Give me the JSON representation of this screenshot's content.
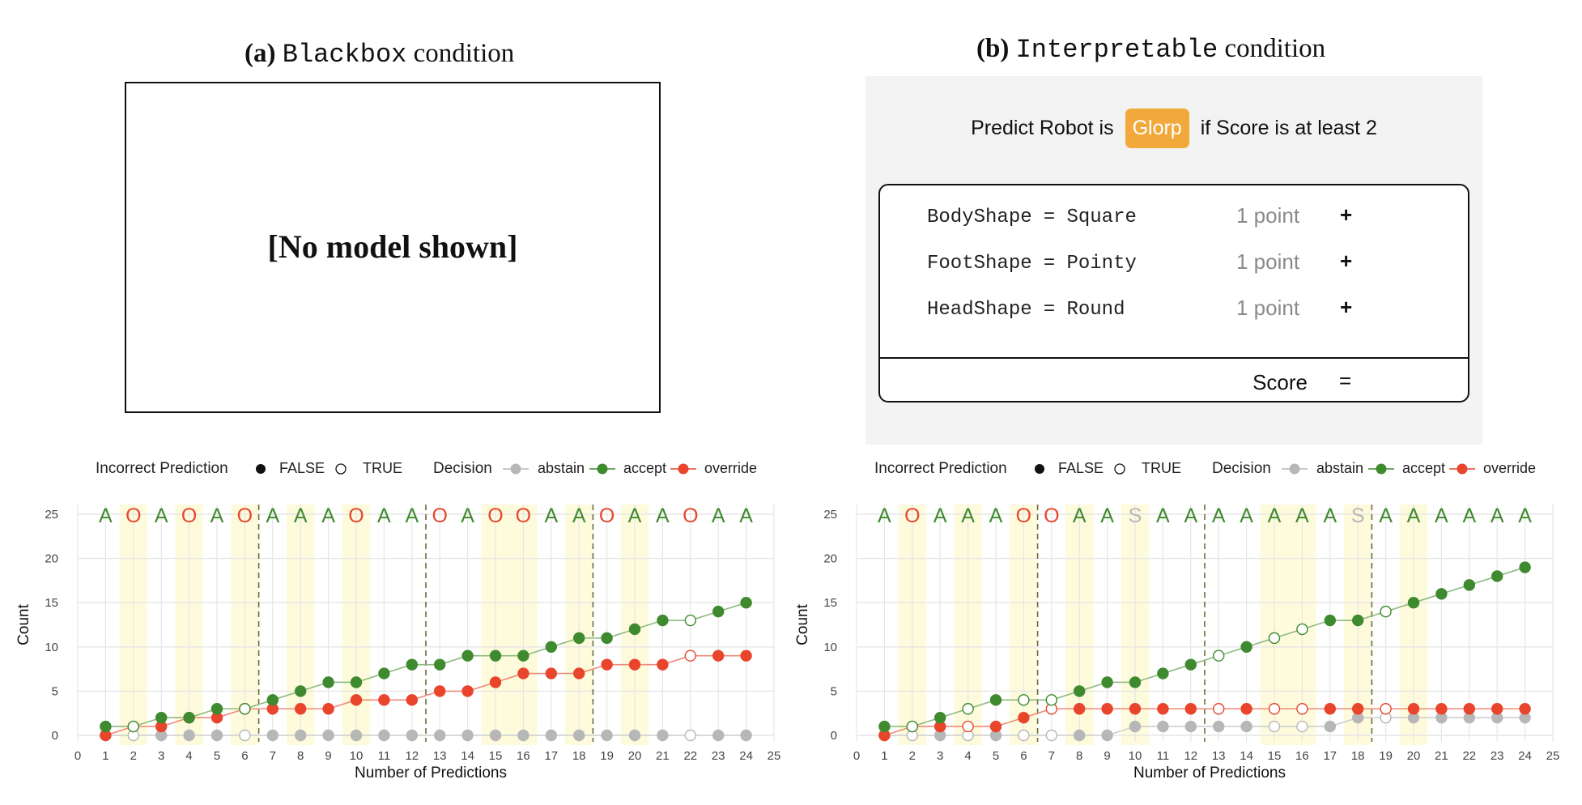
{
  "panels": {
    "a": {
      "label": "(a)",
      "name": "Blackbox",
      "suffix": "condition",
      "placeholder": "[No model shown]"
    },
    "b": {
      "label": "(b)",
      "name": "Interpretable",
      "suffix": "condition"
    }
  },
  "model": {
    "predict_prefix": "Predict Robot is",
    "predict_class": "Glorp",
    "predict_suffix": "if Score is at least 2",
    "rules": [
      {
        "feature": "BodyShape",
        "eq": "=",
        "value": "Square",
        "points": "1 point",
        "op": "+"
      },
      {
        "feature": "FootShape",
        "eq": "=",
        "value": "Pointy",
        "points": "1 point",
        "op": "+"
      },
      {
        "feature": "HeadShape",
        "eq": "=",
        "value": "Round",
        "points": "1 point",
        "op": "+"
      }
    ],
    "score_label": "Score",
    "score_op": "="
  },
  "legend": {
    "incorrect_title": "Incorrect Prediction",
    "false_label": "FALSE",
    "true_label": "TRUE",
    "decision_title": "Decision",
    "abstain_label": "abstain",
    "accept_label": "accept",
    "override_label": "override"
  },
  "colors": {
    "accept": "#3f8a2f",
    "override": "#e8452c",
    "abstain": "#b7b7b7",
    "highlight": "#fdfbdc",
    "grid": "#e6e6e6"
  },
  "chart_data": [
    {
      "type": "line",
      "panel": "a",
      "xlabel": "Number of Predictions",
      "ylabel": "Count",
      "xlim": [
        0,
        25
      ],
      "ylim": [
        0,
        25
      ],
      "x_ticks": [
        0,
        1,
        2,
        3,
        4,
        5,
        6,
        7,
        8,
        9,
        10,
        11,
        12,
        13,
        14,
        15,
        16,
        17,
        18,
        19,
        20,
        21,
        22,
        23,
        24,
        25
      ],
      "y_ticks": [
        0,
        5,
        10,
        15,
        20,
        25
      ],
      "grid": true,
      "decision_letters": [
        "A",
        "O",
        "A",
        "O",
        "A",
        "O",
        "A",
        "A",
        "A",
        "O",
        "A",
        "A",
        "O",
        "A",
        "O",
        "O",
        "A",
        "A",
        "O",
        "A",
        "A",
        "O",
        "A",
        "A"
      ],
      "highlighted_x": [
        2,
        4,
        6,
        8,
        10,
        15,
        16,
        18,
        20
      ],
      "block_separators": [
        6.5,
        12.5,
        18.5
      ],
      "series": [
        {
          "name": "accept",
          "x": [
            1,
            2,
            3,
            4,
            5,
            6,
            7,
            8,
            9,
            10,
            11,
            12,
            13,
            14,
            15,
            16,
            17,
            18,
            19,
            20,
            21,
            22,
            23,
            24
          ],
          "y": [
            1,
            1,
            2,
            2,
            3,
            3,
            4,
            5,
            6,
            6,
            7,
            8,
            8,
            9,
            9,
            9,
            10,
            11,
            11,
            12,
            13,
            13,
            14,
            15
          ],
          "incorrect": [
            false,
            true,
            false,
            false,
            false,
            true,
            false,
            false,
            false,
            false,
            false,
            false,
            false,
            false,
            false,
            false,
            false,
            false,
            false,
            false,
            false,
            true,
            false,
            false
          ]
        },
        {
          "name": "override",
          "x": [
            1,
            2,
            3,
            4,
            5,
            6,
            7,
            8,
            9,
            10,
            11,
            12,
            13,
            14,
            15,
            16,
            17,
            18,
            19,
            20,
            21,
            22,
            23,
            24
          ],
          "y": [
            0,
            1,
            1,
            2,
            2,
            3,
            3,
            3,
            3,
            4,
            4,
            4,
            5,
            5,
            6,
            7,
            7,
            7,
            8,
            8,
            8,
            9,
            9,
            9
          ],
          "incorrect": [
            false,
            true,
            false,
            false,
            false,
            true,
            false,
            false,
            false,
            false,
            false,
            false,
            false,
            false,
            false,
            false,
            false,
            false,
            false,
            false,
            false,
            true,
            false,
            false
          ]
        },
        {
          "name": "abstain",
          "x": [
            1,
            2,
            3,
            4,
            5,
            6,
            7,
            8,
            9,
            10,
            11,
            12,
            13,
            14,
            15,
            16,
            17,
            18,
            19,
            20,
            21,
            22,
            23,
            24
          ],
          "y": [
            0,
            0,
            0,
            0,
            0,
            0,
            0,
            0,
            0,
            0,
            0,
            0,
            0,
            0,
            0,
            0,
            0,
            0,
            0,
            0,
            0,
            0,
            0,
            0
          ],
          "incorrect": [
            false,
            true,
            false,
            false,
            false,
            true,
            false,
            false,
            false,
            false,
            false,
            false,
            false,
            false,
            false,
            false,
            false,
            false,
            false,
            false,
            false,
            true,
            false,
            false
          ]
        }
      ]
    },
    {
      "type": "line",
      "panel": "b",
      "xlabel": "Number of Predictions",
      "ylabel": "Count",
      "xlim": [
        0,
        25
      ],
      "ylim": [
        0,
        25
      ],
      "x_ticks": [
        0,
        1,
        2,
        3,
        4,
        5,
        6,
        7,
        8,
        9,
        10,
        11,
        12,
        13,
        14,
        15,
        16,
        17,
        18,
        19,
        20,
        21,
        22,
        23,
        24,
        25
      ],
      "y_ticks": [
        0,
        5,
        10,
        15,
        20,
        25
      ],
      "grid": true,
      "decision_letters": [
        "A",
        "O",
        "A",
        "A",
        "A",
        "O",
        "O",
        "A",
        "A",
        "S",
        "A",
        "A",
        "A",
        "A",
        "A",
        "A",
        "A",
        "S",
        "A",
        "A",
        "A",
        "A",
        "A",
        "A"
      ],
      "highlighted_x": [
        2,
        4,
        6,
        8,
        10,
        15,
        16,
        18,
        20
      ],
      "block_separators": [
        6.5,
        12.5,
        18.5
      ],
      "series": [
        {
          "name": "accept",
          "x": [
            1,
            2,
            3,
            4,
            5,
            6,
            7,
            8,
            9,
            10,
            11,
            12,
            13,
            14,
            15,
            16,
            17,
            18,
            19,
            20,
            21,
            22,
            23,
            24
          ],
          "y": [
            1,
            1,
            2,
            3,
            4,
            4,
            4,
            5,
            6,
            6,
            7,
            8,
            9,
            10,
            11,
            12,
            13,
            13,
            14,
            15,
            16,
            17,
            18,
            19
          ],
          "incorrect": [
            false,
            true,
            false,
            true,
            false,
            true,
            true,
            false,
            false,
            false,
            false,
            false,
            true,
            false,
            true,
            true,
            false,
            false,
            true,
            false,
            false,
            false,
            false,
            false
          ]
        },
        {
          "name": "override",
          "x": [
            1,
            2,
            3,
            4,
            5,
            6,
            7,
            8,
            9,
            10,
            11,
            12,
            13,
            14,
            15,
            16,
            17,
            18,
            19,
            20,
            21,
            22,
            23,
            24
          ],
          "y": [
            0,
            1,
            1,
            1,
            1,
            2,
            3,
            3,
            3,
            3,
            3,
            3,
            3,
            3,
            3,
            3,
            3,
            3,
            3,
            3,
            3,
            3,
            3,
            3
          ],
          "incorrect": [
            false,
            true,
            false,
            true,
            false,
            false,
            true,
            false,
            false,
            false,
            false,
            false,
            true,
            false,
            true,
            true,
            false,
            false,
            true,
            false,
            false,
            false,
            false,
            false
          ]
        },
        {
          "name": "abstain",
          "x": [
            1,
            2,
            3,
            4,
            5,
            6,
            7,
            8,
            9,
            10,
            11,
            12,
            13,
            14,
            15,
            16,
            17,
            18,
            19,
            20,
            21,
            22,
            23,
            24
          ],
          "y": [
            0,
            0,
            0,
            0,
            0,
            0,
            0,
            0,
            0,
            1,
            1,
            1,
            1,
            1,
            1,
            1,
            1,
            2,
            2,
            2,
            2,
            2,
            2,
            2
          ],
          "incorrect": [
            false,
            true,
            false,
            true,
            false,
            true,
            true,
            false,
            false,
            false,
            false,
            false,
            false,
            false,
            true,
            true,
            false,
            false,
            true,
            false,
            false,
            false,
            false,
            false
          ]
        }
      ]
    }
  ]
}
